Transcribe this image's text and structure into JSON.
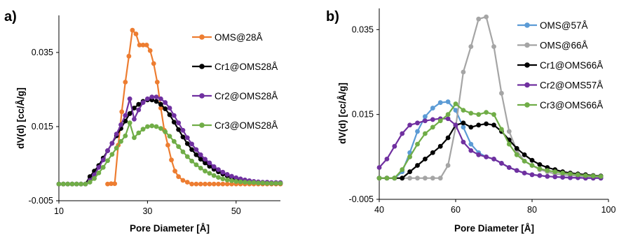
{
  "chart_data": [
    {
      "panel_label": "a)",
      "type": "line",
      "xlabel": "Pore Diameter [Å]",
      "ylabel": "dV(d) [cc/Å/g]",
      "xlim": [
        10,
        60
      ],
      "ylim": [
        -0.005,
        0.045
      ],
      "xticks": [
        10,
        30,
        50
      ],
      "xtick_labels": [
        "10",
        "30",
        "50"
      ],
      "yticks": [
        -0.005,
        0.015,
        0.035
      ],
      "ytick_labels": [
        "-0.005",
        "0.015",
        "0.035"
      ],
      "grid": false,
      "legend_position": "right",
      "series": [
        {
          "name": "OMS@28Å",
          "color": "#ED7D31",
          "x": [
            21.0,
            21.8,
            22.6,
            23.4,
            24.2,
            25.0,
            25.8,
            26.6,
            27.4,
            28.2,
            29.0,
            29.8,
            30.6,
            31.4,
            32.2,
            33.0,
            33.8,
            34.6,
            35.4,
            36.2,
            37.0,
            38.0,
            39.0,
            40.0,
            41.0,
            42.0,
            43.0,
            44.0,
            45.0,
            46.0,
            47.0,
            48.0,
            49.0,
            50.0,
            51.0,
            52.0,
            53.0,
            54.0,
            55.0,
            56.0,
            57.0,
            58.0,
            59.0,
            60.0
          ],
          "y": [
            -0.0005,
            -0.0004,
            -0.0004,
            0.01,
            0.019,
            0.027,
            0.034,
            0.041,
            0.04,
            0.037,
            0.037,
            0.037,
            0.0355,
            0.032,
            0.027,
            0.02,
            0.014,
            0.01,
            0.006,
            0.003,
            0.0015,
            0.0005,
            0.0,
            -0.0005,
            -0.0005,
            -0.0005,
            -0.0005,
            -0.0005,
            -0.0005,
            -0.0005,
            -0.0005,
            -0.0005,
            -0.0005,
            -0.0005,
            -0.0005,
            -0.0005,
            -0.0005,
            -0.0005,
            -0.0005,
            -0.0005,
            -0.0005,
            -0.0005,
            -0.0005,
            -0.0005
          ]
        },
        {
          "name": "Cr1@OMS28Å",
          "color": "#000000",
          "x": [
            10.0,
            11.0,
            12.0,
            13.0,
            14.0,
            15.0,
            16.0,
            17.0,
            18.0,
            19.0,
            20.0,
            21.0,
            22.0,
            23.0,
            24.0,
            25.0,
            26.0,
            27.0,
            28.0,
            29.0,
            30.0,
            31.0,
            32.0,
            33.0,
            34.0,
            35.0,
            36.0,
            37.0,
            38.0,
            39.0,
            40.0,
            41.0,
            42.0,
            43.0,
            44.0,
            45.0,
            46.0,
            47.0,
            48.0,
            49.0,
            50.0,
            51.0,
            52.0,
            53.0,
            54.0,
            55.0,
            56.0,
            57.0,
            58.0,
            59.0,
            60.0
          ],
          "y": [
            -0.0005,
            -0.0005,
            -0.0005,
            -0.0005,
            -0.0005,
            -0.0005,
            -0.0005,
            0.0015,
            0.003,
            0.0045,
            0.0065,
            0.0085,
            0.0105,
            0.0125,
            0.0145,
            0.0165,
            0.0185,
            0.02,
            0.021,
            0.0218,
            0.0222,
            0.0222,
            0.0218,
            0.021,
            0.0198,
            0.0182,
            0.0162,
            0.0142,
            0.0122,
            0.0104,
            0.0088,
            0.0074,
            0.0062,
            0.0052,
            0.0043,
            0.0035,
            0.0028,
            0.0022,
            0.0017,
            0.0012,
            0.0008,
            0.0005,
            0.0003,
            0.0001,
            0.0,
            -0.0001,
            -0.0002,
            -0.0002,
            -0.0003,
            -0.0003,
            -0.0003
          ]
        },
        {
          "name": "Cr2@OMS28Å",
          "color": "#7030A0",
          "x": [
            10.0,
            11.0,
            12.0,
            13.0,
            14.0,
            15.0,
            16.0,
            17.0,
            18.0,
            19.0,
            20.0,
            21.0,
            22.0,
            23.0,
            24.0,
            25.0,
            26.0,
            27.0,
            28.0,
            29.0,
            30.0,
            31.0,
            32.0,
            33.0,
            34.0,
            35.0,
            36.0,
            37.0,
            38.0,
            39.0,
            40.0,
            41.0,
            42.0,
            43.0,
            44.0,
            45.0,
            46.0,
            47.0,
            48.0,
            49.0,
            50.0,
            51.0,
            52.0,
            53.0,
            54.0,
            55.0,
            56.0,
            57.0,
            58.0,
            59.0,
            60.0
          ],
          "y": [
            -0.0005,
            -0.0005,
            -0.0005,
            -0.0005,
            -0.0005,
            -0.0005,
            -0.0005,
            0.0005,
            0.002,
            0.004,
            0.006,
            0.0085,
            0.0105,
            0.013,
            0.0155,
            0.018,
            0.0225,
            0.017,
            0.0195,
            0.0215,
            0.0225,
            0.023,
            0.023,
            0.0225,
            0.0215,
            0.02,
            0.018,
            0.016,
            0.014,
            0.012,
            0.0103,
            0.0088,
            0.0074,
            0.0062,
            0.0052,
            0.0042,
            0.0034,
            0.0027,
            0.0021,
            0.0016,
            0.0012,
            0.0009,
            0.0006,
            0.0004,
            0.0002,
            0.0001,
            0.0,
            0.0,
            -0.0001,
            -0.0001,
            -0.0001
          ]
        },
        {
          "name": "Cr3@OMS28Å",
          "color": "#70AD47",
          "x": [
            10.0,
            11.0,
            12.0,
            13.0,
            14.0,
            15.0,
            16.0,
            17.0,
            18.0,
            19.0,
            20.0,
            21.0,
            22.0,
            23.0,
            24.0,
            25.0,
            26.0,
            27.0,
            28.0,
            29.0,
            30.0,
            31.0,
            32.0,
            33.0,
            34.0,
            35.0,
            36.0,
            37.0,
            38.0,
            39.0,
            40.0,
            41.0,
            42.0,
            43.0,
            44.0,
            45.0,
            46.0,
            47.0,
            48.0,
            49.0,
            50.0,
            51.0,
            52.0,
            53.0,
            54.0,
            55.0,
            56.0,
            57.0,
            58.0,
            59.0,
            60.0
          ],
          "y": [
            -0.0005,
            -0.0005,
            -0.0005,
            -0.0005,
            -0.0005,
            -0.0005,
            -0.0005,
            0.0,
            0.001,
            0.0025,
            0.004,
            0.0058,
            0.0075,
            0.0092,
            0.011,
            0.0125,
            0.016,
            0.012,
            0.0133,
            0.0143,
            0.015,
            0.0152,
            0.015,
            0.0145,
            0.0136,
            0.0124,
            0.011,
            0.0096,
            0.0082,
            0.0069,
            0.0057,
            0.0047,
            0.0038,
            0.003,
            0.0024,
            0.0018,
            0.0013,
            0.0009,
            0.0006,
            0.0004,
            0.0002,
            0.0001,
            0.0,
            -0.0001,
            -0.0001,
            -0.0002,
            -0.0002,
            -0.0003,
            -0.0003,
            -0.0003,
            -0.0003
          ]
        }
      ]
    },
    {
      "panel_label": "b)",
      "type": "line",
      "xlabel": "Pore Diameter [Å]",
      "ylabel": "dV(d) [cc/Å/g]",
      "xlim": [
        40,
        100
      ],
      "ylim": [
        -0.005,
        0.04
      ],
      "xticks": [
        40,
        60,
        80,
        100
      ],
      "xtick_labels": [
        "40",
        "60",
        "80",
        "100"
      ],
      "yticks": [
        -0.005,
        0.015,
        0.035
      ],
      "ytick_labels": [
        "-0.005",
        "0.015",
        "0.035"
      ],
      "grid": false,
      "legend_position": "top-right",
      "series": [
        {
          "name": "OMS@57Å",
          "color": "#5B9BD5",
          "x": [
            40.0,
            42.0,
            44.0,
            46.0,
            48.0,
            50.0,
            52.0,
            54.0,
            56.0,
            58.0,
            60.0,
            62.0,
            64.0,
            66.0,
            68.0,
            70.0,
            72.0,
            74.0,
            76.0,
            78.0,
            80.0,
            82.0,
            84.0,
            86.0,
            88.0,
            90.0,
            92.0,
            94.0,
            96.0,
            98.0
          ],
          "y": [
            0.0,
            0.0,
            0.0,
            0.0015,
            0.006,
            0.011,
            0.0145,
            0.0165,
            0.0178,
            0.018,
            0.016,
            0.012,
            0.008,
            0.006,
            0.005,
            0.0045,
            0.0035,
            0.0025,
            0.0018,
            0.0012,
            0.0008,
            0.0006,
            0.0004,
            0.0003,
            0.0002,
            0.0001,
            0.0001,
            0.0,
            0.0,
            0.0
          ]
        },
        {
          "name": "OMS@66Å",
          "color": "#A5A5A5",
          "x": [
            40.0,
            42.0,
            44.0,
            46.0,
            48.0,
            50.0,
            52.0,
            54.0,
            56.0,
            58.0,
            60.0,
            62.0,
            64.0,
            66.0,
            68.0,
            70.0,
            72.0,
            74.0,
            76.0,
            78.0,
            80.0,
            82.0,
            84.0,
            86.0,
            88.0,
            90.0,
            92.0,
            94.0,
            96.0,
            98.0
          ],
          "y": [
            0.0,
            0.0,
            0.0,
            0.0,
            0.0,
            0.0,
            0.0,
            0.0,
            0.0,
            0.003,
            0.012,
            0.025,
            0.031,
            0.0375,
            0.038,
            0.031,
            0.02,
            0.011,
            0.0065,
            0.004,
            0.003,
            0.002,
            0.0015,
            0.001,
            0.0008,
            0.0006,
            0.0005,
            0.0004,
            0.0003,
            0.0003
          ]
        },
        {
          "name": "Cr1@OMS66Å",
          "color": "#000000",
          "x": [
            40.0,
            42.0,
            44.0,
            46.0,
            48.0,
            50.0,
            52.0,
            54.0,
            56.0,
            58.0,
            60.0,
            62.0,
            64.0,
            66.0,
            68.0,
            70.0,
            72.0,
            74.0,
            76.0,
            78.0,
            80.0,
            82.0,
            84.0,
            86.0,
            88.0,
            90.0,
            92.0,
            94.0,
            96.0,
            98.0
          ],
          "y": [
            0.0,
            0.0,
            0.0,
            0.0,
            0.0015,
            0.003,
            0.0045,
            0.006,
            0.0075,
            0.0095,
            0.0125,
            0.013,
            0.012,
            0.0125,
            0.0128,
            0.0125,
            0.011,
            0.009,
            0.007,
            0.0055,
            0.0042,
            0.0032,
            0.0025,
            0.002,
            0.0015,
            0.0012,
            0.001,
            0.0008,
            0.0006,
            0.0005
          ]
        },
        {
          "name": "Cr2@OMS57Å",
          "color": "#7030A0",
          "x": [
            40.0,
            42.0,
            44.0,
            46.0,
            48.0,
            50.0,
            52.0,
            54.0,
            56.0,
            58.0,
            60.0,
            62.0,
            64.0,
            66.0,
            68.0,
            70.0,
            72.0,
            74.0,
            76.0,
            78.0,
            80.0,
            82.0,
            84.0,
            86.0,
            88.0,
            90.0,
            92.0,
            94.0,
            96.0,
            98.0
          ],
          "y": [
            0.0025,
            0.0045,
            0.0075,
            0.0105,
            0.0125,
            0.013,
            0.0135,
            0.0138,
            0.014,
            0.014,
            0.0125,
            0.0085,
            0.0065,
            0.0055,
            0.005,
            0.0045,
            0.0035,
            0.0025,
            0.0018,
            0.0012,
            0.0008,
            0.0006,
            0.0004,
            0.0003,
            0.0002,
            0.0001,
            0.0001,
            0.0,
            0.0,
            0.0
          ]
        },
        {
          "name": "Cr3@OMS66Å",
          "color": "#70AD47",
          "x": [
            40.0,
            42.0,
            44.0,
            46.0,
            48.0,
            50.0,
            52.0,
            54.0,
            56.0,
            58.0,
            60.0,
            62.0,
            64.0,
            66.0,
            68.0,
            70.0,
            72.0,
            74.0,
            76.0,
            78.0,
            80.0,
            82.0,
            84.0,
            86.0,
            88.0,
            90.0,
            92.0,
            94.0,
            96.0,
            98.0
          ],
          "y": [
            0.0,
            0.0,
            0.0,
            0.002,
            0.005,
            0.008,
            0.0105,
            0.012,
            0.0135,
            0.015,
            0.0175,
            0.016,
            0.0153,
            0.015,
            0.0155,
            0.015,
            0.0115,
            0.008,
            0.0055,
            0.004,
            0.003,
            0.0022,
            0.0018,
            0.0015,
            0.0012,
            0.001,
            0.0008,
            0.0006,
            0.0005,
            0.0004
          ]
        }
      ]
    }
  ]
}
